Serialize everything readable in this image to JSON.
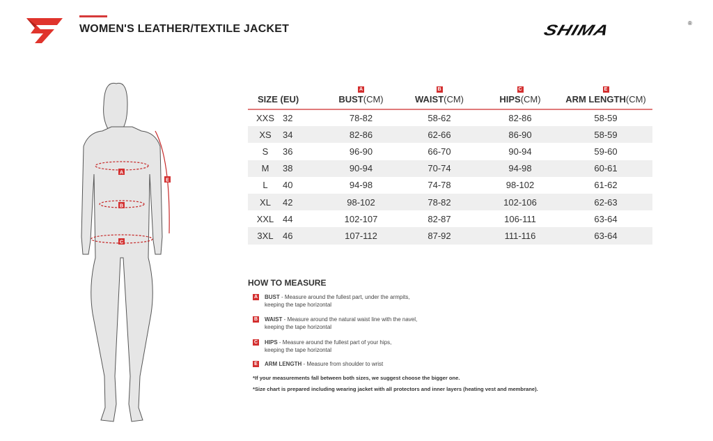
{
  "header": {
    "title": "WOMEN'S LEATHER/TEXTILE JACKET",
    "brand": "SHIMA",
    "reg": "®"
  },
  "colors": {
    "accent": "#d32f2f",
    "stripe": "#efefef"
  },
  "figure_labels": [
    "A",
    "B",
    "C",
    "E"
  ],
  "table": {
    "columns": [
      {
        "badge": "",
        "bold": "SIZE (EU)",
        "unit": ""
      },
      {
        "badge": "A",
        "bold": "BUST",
        "unit": "(CM)"
      },
      {
        "badge": "B",
        "bold": "WAIST",
        "unit": "(CM)"
      },
      {
        "badge": "C",
        "bold": "HIPS",
        "unit": "(CM)"
      },
      {
        "badge": "E",
        "bold": "ARM LENGTH",
        "unit": "(CM)"
      }
    ],
    "rows": [
      [
        "XXS",
        "32",
        "78-82",
        "58-62",
        "82-86",
        "58-59"
      ],
      [
        "XS",
        "34",
        "82-86",
        "62-66",
        "86-90",
        "58-59"
      ],
      [
        "S",
        "36",
        "96-90",
        "66-70",
        "90-94",
        "59-60"
      ],
      [
        "M",
        "38",
        "90-94",
        "70-74",
        "94-98",
        "60-61"
      ],
      [
        "L",
        "40",
        "94-98",
        "74-78",
        "98-102",
        "61-62"
      ],
      [
        "XL",
        "42",
        "98-102",
        "78-82",
        "102-106",
        "62-63"
      ],
      [
        "XXL",
        "44",
        "102-107",
        "82-87",
        "106-111",
        "63-64"
      ],
      [
        "3XL",
        "46",
        "107-112",
        "87-92",
        "111-116",
        "63-64"
      ]
    ]
  },
  "how": {
    "title": "HOW TO MEASURE",
    "items": [
      {
        "badge": "A",
        "name": "BUST",
        "text": " - Measure around the fullest part, under the armpits,",
        "text2": "keeping the tape horizontal"
      },
      {
        "badge": "B",
        "name": "WAIST",
        "text": " - Measure around the natural waist line with the navel,",
        "text2": "keeping the tape horizontal"
      },
      {
        "badge": "C",
        "name": "HIPS",
        "text": " - Measure around the fullest part of your hips,",
        "text2": "keeping the tape horizontal"
      },
      {
        "badge": "E",
        "name": "ARM LENGTH",
        "text": " - Measure from shoulder to wrist",
        "text2": ""
      }
    ],
    "notes": [
      "*If your measurements fall between both sizes, we suggest choose the bigger one.",
      "*Size chart is prepared including wearing jacket with all protectors and inner layers (heating vest and membrane)."
    ]
  }
}
